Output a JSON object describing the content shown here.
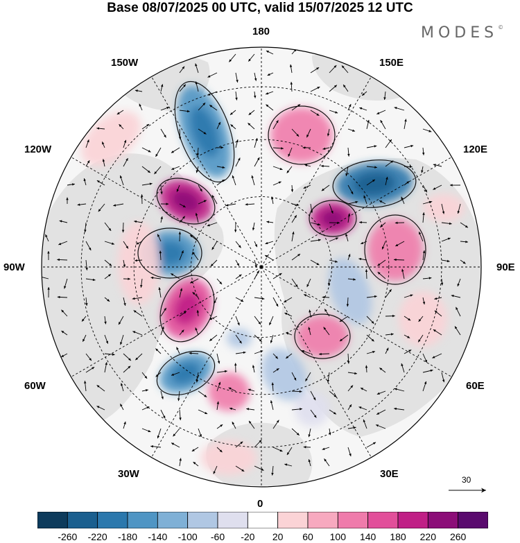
{
  "title": "Base 08/07/2025 00 UTC, valid 15/07/2025 12 UTC",
  "brand": "MODES",
  "brand_mark": "©",
  "longitude_labels": {
    "n180": "180",
    "w150": "150W",
    "e150": "150E",
    "w120": "120W",
    "e120": "120E",
    "w90": "90W",
    "e90": "90E",
    "w60": "60W",
    "e60": "60E",
    "w30": "30W",
    "e30": "30E",
    "s0": "0"
  },
  "reference_vector": {
    "label": "30"
  },
  "colorbar": {
    "labels": [
      "-260",
      "-220",
      "-180",
      "-140",
      "-100",
      "-60",
      "-20",
      "20",
      "60",
      "100",
      "140",
      "180",
      "220",
      "260"
    ],
    "colors": [
      "#0d3b5c",
      "#1a5f8f",
      "#2b78ad",
      "#4f95c4",
      "#7fb0d6",
      "#b0c7e3",
      "#dfdfee",
      "#ffffff",
      "#fbd3d6",
      "#f7a9bf",
      "#ef7bab",
      "#e24f9a",
      "#c01f86",
      "#8c0d78",
      "#5a0a6e"
    ]
  },
  "map_colors": {
    "land": "#e2e2e2",
    "ocean": "#f6f6f6"
  }
}
